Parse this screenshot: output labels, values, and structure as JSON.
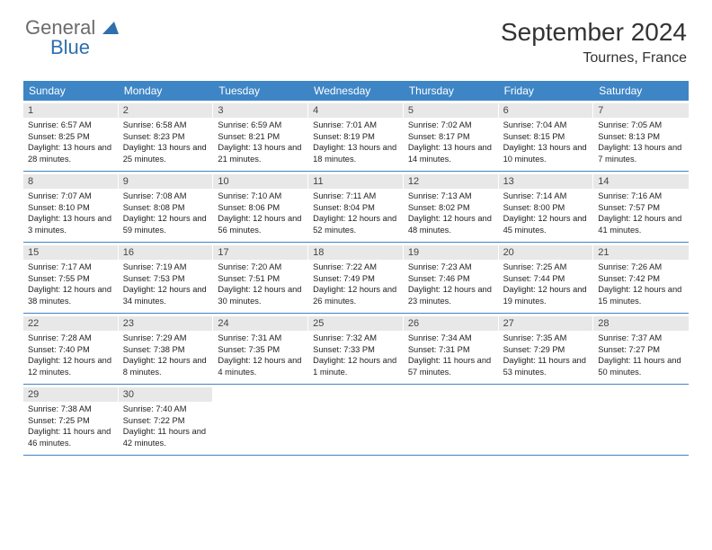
{
  "brand": {
    "word1": "General",
    "word2": "Blue"
  },
  "title": "September 2024",
  "location": "Tournes, France",
  "colors": {
    "header_bg": "#3e85c6",
    "header_text": "#ffffff",
    "daynum_bg": "#e8e8e8",
    "border": "#3e85c6",
    "body_text": "#222222",
    "logo_gray": "#6b6b6b",
    "logo_blue": "#2f6fad"
  },
  "days_of_week": [
    "Sunday",
    "Monday",
    "Tuesday",
    "Wednesday",
    "Thursday",
    "Friday",
    "Saturday"
  ],
  "weeks": [
    [
      {
        "num": "1",
        "sunrise": "6:57 AM",
        "sunset": "8:25 PM",
        "daylight": "13 hours and 28 minutes."
      },
      {
        "num": "2",
        "sunrise": "6:58 AM",
        "sunset": "8:23 PM",
        "daylight": "13 hours and 25 minutes."
      },
      {
        "num": "3",
        "sunrise": "6:59 AM",
        "sunset": "8:21 PM",
        "daylight": "13 hours and 21 minutes."
      },
      {
        "num": "4",
        "sunrise": "7:01 AM",
        "sunset": "8:19 PM",
        "daylight": "13 hours and 18 minutes."
      },
      {
        "num": "5",
        "sunrise": "7:02 AM",
        "sunset": "8:17 PM",
        "daylight": "13 hours and 14 minutes."
      },
      {
        "num": "6",
        "sunrise": "7:04 AM",
        "sunset": "8:15 PM",
        "daylight": "13 hours and 10 minutes."
      },
      {
        "num": "7",
        "sunrise": "7:05 AM",
        "sunset": "8:13 PM",
        "daylight": "13 hours and 7 minutes."
      }
    ],
    [
      {
        "num": "8",
        "sunrise": "7:07 AM",
        "sunset": "8:10 PM",
        "daylight": "13 hours and 3 minutes."
      },
      {
        "num": "9",
        "sunrise": "7:08 AM",
        "sunset": "8:08 PM",
        "daylight": "12 hours and 59 minutes."
      },
      {
        "num": "10",
        "sunrise": "7:10 AM",
        "sunset": "8:06 PM",
        "daylight": "12 hours and 56 minutes."
      },
      {
        "num": "11",
        "sunrise": "7:11 AM",
        "sunset": "8:04 PM",
        "daylight": "12 hours and 52 minutes."
      },
      {
        "num": "12",
        "sunrise": "7:13 AM",
        "sunset": "8:02 PM",
        "daylight": "12 hours and 48 minutes."
      },
      {
        "num": "13",
        "sunrise": "7:14 AM",
        "sunset": "8:00 PM",
        "daylight": "12 hours and 45 minutes."
      },
      {
        "num": "14",
        "sunrise": "7:16 AM",
        "sunset": "7:57 PM",
        "daylight": "12 hours and 41 minutes."
      }
    ],
    [
      {
        "num": "15",
        "sunrise": "7:17 AM",
        "sunset": "7:55 PM",
        "daylight": "12 hours and 38 minutes."
      },
      {
        "num": "16",
        "sunrise": "7:19 AM",
        "sunset": "7:53 PM",
        "daylight": "12 hours and 34 minutes."
      },
      {
        "num": "17",
        "sunrise": "7:20 AM",
        "sunset": "7:51 PM",
        "daylight": "12 hours and 30 minutes."
      },
      {
        "num": "18",
        "sunrise": "7:22 AM",
        "sunset": "7:49 PM",
        "daylight": "12 hours and 26 minutes."
      },
      {
        "num": "19",
        "sunrise": "7:23 AM",
        "sunset": "7:46 PM",
        "daylight": "12 hours and 23 minutes."
      },
      {
        "num": "20",
        "sunrise": "7:25 AM",
        "sunset": "7:44 PM",
        "daylight": "12 hours and 19 minutes."
      },
      {
        "num": "21",
        "sunrise": "7:26 AM",
        "sunset": "7:42 PM",
        "daylight": "12 hours and 15 minutes."
      }
    ],
    [
      {
        "num": "22",
        "sunrise": "7:28 AM",
        "sunset": "7:40 PM",
        "daylight": "12 hours and 12 minutes."
      },
      {
        "num": "23",
        "sunrise": "7:29 AM",
        "sunset": "7:38 PM",
        "daylight": "12 hours and 8 minutes."
      },
      {
        "num": "24",
        "sunrise": "7:31 AM",
        "sunset": "7:35 PM",
        "daylight": "12 hours and 4 minutes."
      },
      {
        "num": "25",
        "sunrise": "7:32 AM",
        "sunset": "7:33 PM",
        "daylight": "12 hours and 1 minute."
      },
      {
        "num": "26",
        "sunrise": "7:34 AM",
        "sunset": "7:31 PM",
        "daylight": "11 hours and 57 minutes."
      },
      {
        "num": "27",
        "sunrise": "7:35 AM",
        "sunset": "7:29 PM",
        "daylight": "11 hours and 53 minutes."
      },
      {
        "num": "28",
        "sunrise": "7:37 AM",
        "sunset": "7:27 PM",
        "daylight": "11 hours and 50 minutes."
      }
    ],
    [
      {
        "num": "29",
        "sunrise": "7:38 AM",
        "sunset": "7:25 PM",
        "daylight": "11 hours and 46 minutes."
      },
      {
        "num": "30",
        "sunrise": "7:40 AM",
        "sunset": "7:22 PM",
        "daylight": "11 hours and 42 minutes."
      },
      null,
      null,
      null,
      null,
      null
    ]
  ]
}
